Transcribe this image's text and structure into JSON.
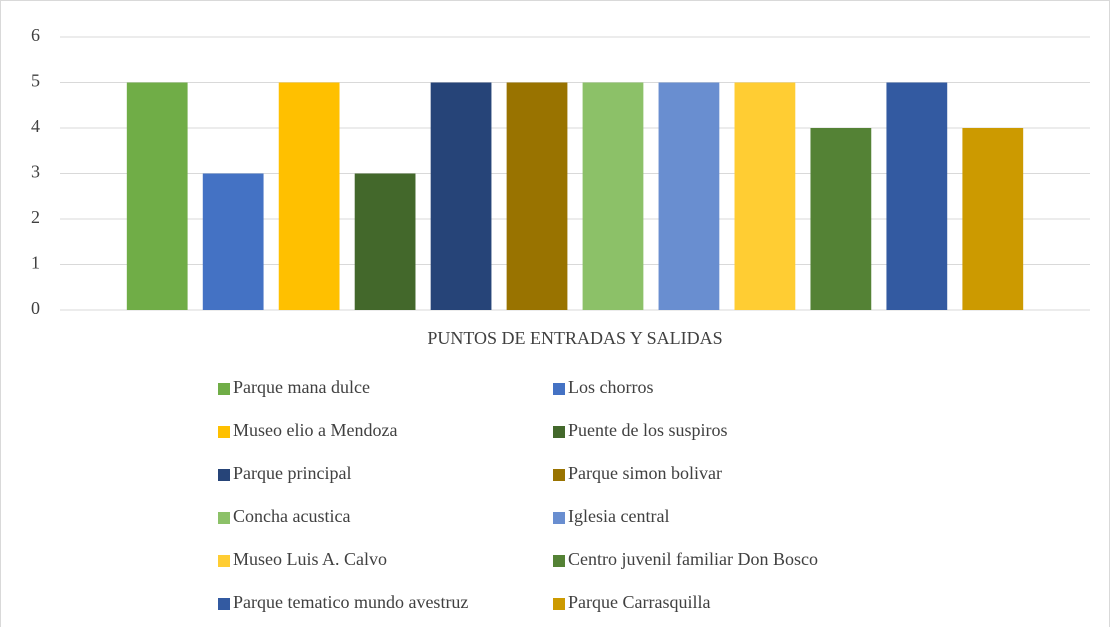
{
  "chart_data": {
    "type": "bar",
    "categories": [
      "PUNTOS DE ENTRADAS Y SALIDAS"
    ],
    "series": [
      {
        "name": "Parque mana dulce",
        "color": "#70ad47",
        "values": [
          5
        ]
      },
      {
        "name": "Los chorros",
        "color": "#4472c4",
        "values": [
          3
        ]
      },
      {
        "name": "Museo elio a Mendoza",
        "color": "#ffc000",
        "values": [
          5
        ]
      },
      {
        "name": "Puente de los suspiros",
        "color": "#43682b",
        "values": [
          3
        ]
      },
      {
        "name": "Parque principal",
        "color": "#264478",
        "values": [
          5
        ]
      },
      {
        "name": "Parque simon bolivar",
        "color": "#997300",
        "values": [
          5
        ]
      },
      {
        "name": "Concha acustica",
        "color": "#8cc168",
        "values": [
          5
        ]
      },
      {
        "name": "Iglesia central",
        "color": "#698ed0",
        "values": [
          5
        ]
      },
      {
        "name": "Museo Luis A. Calvo",
        "color": "#ffcd33",
        "values": [
          5
        ]
      },
      {
        "name": "Centro juvenil familiar Don Bosco",
        "color": "#548235",
        "values": [
          4
        ]
      },
      {
        "name": "Parque tematico mundo avestruz",
        "color": "#335aa1",
        "values": [
          5
        ]
      },
      {
        "name": "Parque Carrasquilla",
        "color": "#cc9a00",
        "values": [
          4
        ]
      }
    ],
    "ylim": [
      0,
      6
    ],
    "yticks": [
      0,
      1,
      2,
      3,
      4,
      5,
      6
    ],
    "grid": true,
    "legend": "bottom"
  }
}
